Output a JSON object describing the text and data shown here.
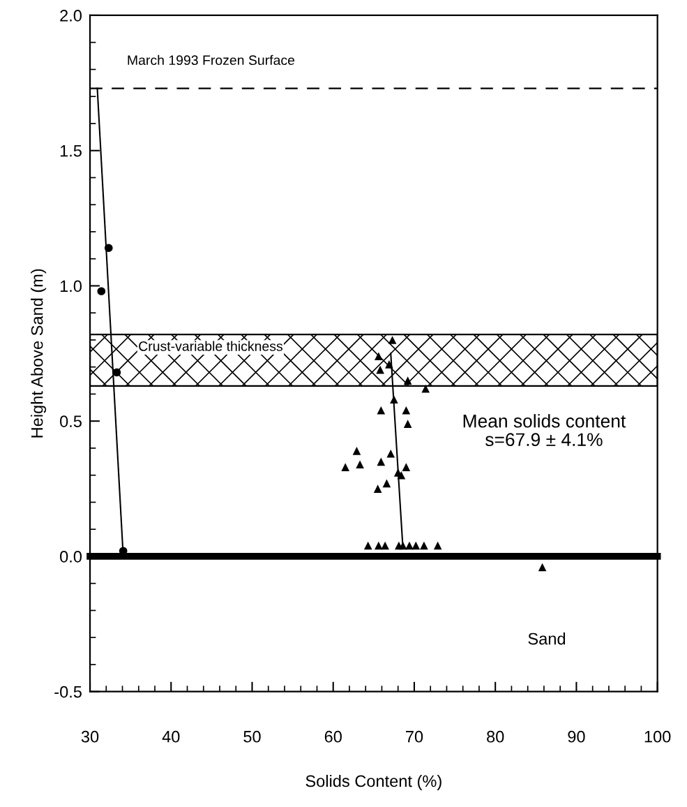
{
  "chart_data": {
    "type": "scatter",
    "xlabel": "Solids Content (%)",
    "ylabel": "Height Above Sand (m)",
    "xlim": [
      30,
      100
    ],
    "xticks": [
      30,
      40,
      50,
      60,
      70,
      80,
      90,
      100
    ],
    "ylim": [
      -0.5,
      2.0
    ],
    "yticks": [
      {
        "value": -0.5,
        "label": "-0.5"
      },
      {
        "value": 0.0,
        "label": "0.0"
      },
      {
        "value": 0.5,
        "label": "0.5"
      },
      {
        "value": 1.0,
        "label": "1.0"
      },
      {
        "value": 1.5,
        "label": "1.5"
      },
      {
        "value": 2.0,
        "label": "2.0"
      }
    ],
    "grid": false,
    "legend": false,
    "series": [
      {
        "marker": "circle",
        "color": "#000000",
        "x": [
          31.4,
          32.3,
          33.3,
          34.1
        ],
        "values": [
          0.98,
          1.14,
          0.68,
          0.02
        ]
      },
      {
        "type": "line",
        "marker": "none",
        "color": "#000000",
        "x": [
          30.9,
          34.1
        ],
        "values": [
          1.73,
          0.0
        ]
      },
      {
        "marker": "triangle",
        "color": "#000000",
        "x": [
          61.5,
          62.9,
          63.3,
          65.9,
          65.9,
          67.1,
          65.5,
          66.6,
          68.0,
          68.4,
          67.5,
          69.0,
          69.2,
          69.0,
          67.3,
          65.6,
          65.8,
          66.9,
          69.2,
          71.4,
          64.3,
          65.6,
          66.4,
          68.1,
          68.6,
          69.4,
          70.2,
          71.2,
          72.9,
          85.8
        ],
        "values": [
          0.33,
          0.39,
          0.34,
          0.54,
          0.35,
          0.38,
          0.25,
          0.27,
          0.31,
          0.3,
          0.58,
          0.54,
          0.49,
          0.33,
          0.8,
          0.74,
          0.69,
          0.71,
          0.65,
          0.62,
          0.04,
          0.04,
          0.04,
          0.04,
          0.04,
          0.04,
          0.04,
          0.04,
          0.04,
          -0.04
        ]
      },
      {
        "type": "line",
        "marker": "none",
        "color": "#000000",
        "x": [
          67.1,
          68.6
        ],
        "values": [
          0.75,
          0.03
        ]
      }
    ],
    "ref_lines": [
      {
        "axis": "y",
        "value": 1.73,
        "label": "March 1993 Frozen Surface",
        "line_style": "dashed",
        "color": "#000000"
      },
      {
        "axis": "y",
        "value": 0.0,
        "label": null,
        "line_style": "solid",
        "color": "#000000"
      }
    ],
    "bands": [
      {
        "axis": "y",
        "from": 0.63,
        "to": 0.82,
        "label": "Crust-variable thickness",
        "color": "#000000"
      }
    ],
    "annotations": [
      "Mean solids content\ns=67.9 ± 4.1%",
      "Sand"
    ]
  }
}
